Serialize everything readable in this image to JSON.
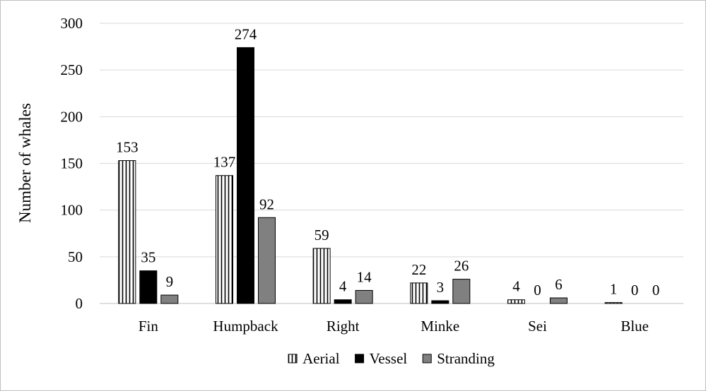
{
  "chart_data": {
    "type": "bar",
    "title": "",
    "xlabel": "",
    "ylabel": "Number of  whales",
    "ylim": [
      0,
      300
    ],
    "yticks": [
      0,
      50,
      100,
      150,
      200,
      250,
      300
    ],
    "ytick_labels": [
      "0",
      "50",
      "100",
      "150",
      "200",
      "250",
      "300"
    ],
    "grid": true,
    "legend_position": "bottom",
    "categories": [
      "Fin",
      "Humpback",
      "Right",
      "Minke",
      "Sei",
      "Blue"
    ],
    "series": [
      {
        "name": "Aerial",
        "values": [
          153,
          137,
          59,
          22,
          4,
          1
        ],
        "pattern": "vertical-stripes",
        "color": "#ffffff",
        "stroke": "#000000"
      },
      {
        "name": "Vessel",
        "values": [
          35,
          274,
          4,
          3,
          0,
          0
        ],
        "pattern": "solid",
        "color": "#000000",
        "stroke": "#000000"
      },
      {
        "name": "Stranding",
        "values": [
          9,
          92,
          14,
          26,
          6,
          0
        ],
        "pattern": "solid",
        "color": "#808080",
        "stroke": "#000000"
      }
    ]
  }
}
